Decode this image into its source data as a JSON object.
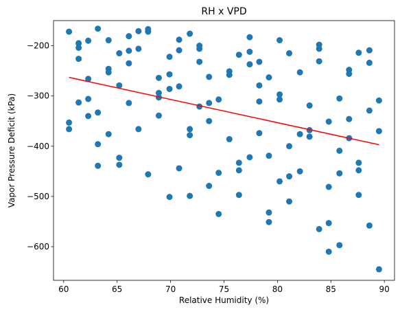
{
  "chart_data": {
    "type": "scatter",
    "title": "RH x VPD",
    "xlabel": "Relative Humidity (%)",
    "ylabel": "Vapor Pressure Deficit (kPa)",
    "xlim": [
      59.05,
      90.95
    ],
    "ylim": [
      -667,
      -150
    ],
    "xticks": [
      60,
      65,
      70,
      75,
      80,
      85,
      90
    ],
    "yticks": [
      -200,
      -300,
      -400,
      -500,
      -600
    ],
    "grid": false,
    "point_color": "#1f77b4",
    "trend_color": "#ff0000",
    "points": [
      [
        60.5,
        -172
      ],
      [
        60.5,
        -353
      ],
      [
        60.5,
        -366
      ],
      [
        61.4,
        -195
      ],
      [
        61.4,
        -204
      ],
      [
        61.4,
        -226
      ],
      [
        61.4,
        -313
      ],
      [
        62.3,
        -190
      ],
      [
        62.3,
        -266
      ],
      [
        62.3,
        -306
      ],
      [
        62.3,
        -340
      ],
      [
        63.2,
        -166
      ],
      [
        63.2,
        -333
      ],
      [
        63.2,
        -396
      ],
      [
        63.2,
        -439
      ],
      [
        64.2,
        -189
      ],
      [
        64.2,
        -246
      ],
      [
        64.2,
        -253
      ],
      [
        64.2,
        -376
      ],
      [
        65.2,
        -215
      ],
      [
        65.2,
        -279
      ],
      [
        65.2,
        -423
      ],
      [
        65.2,
        -437
      ],
      [
        66.1,
        -181
      ],
      [
        66.1,
        -210
      ],
      [
        66.1,
        -235
      ],
      [
        66.1,
        -314
      ],
      [
        67.0,
        -171
      ],
      [
        67.0,
        -206
      ],
      [
        67.0,
        -366
      ],
      [
        67.9,
        -167
      ],
      [
        67.9,
        -172
      ],
      [
        67.9,
        -456
      ],
      [
        68.9,
        -264
      ],
      [
        68.9,
        -294
      ],
      [
        68.9,
        -303
      ],
      [
        68.9,
        -339
      ],
      [
        69.9,
        -222
      ],
      [
        69.9,
        -257
      ],
      [
        69.9,
        -286
      ],
      [
        69.9,
        -501
      ],
      [
        70.8,
        -188
      ],
      [
        70.8,
        -209
      ],
      [
        70.8,
        -281
      ],
      [
        70.8,
        -444
      ],
      [
        71.8,
        -176
      ],
      [
        71.8,
        -366
      ],
      [
        71.8,
        -378
      ],
      [
        71.8,
        -499
      ],
      [
        72.7,
        -200
      ],
      [
        72.7,
        -206
      ],
      [
        72.7,
        -232
      ],
      [
        72.7,
        -321
      ],
      [
        73.6,
        -262
      ],
      [
        73.6,
        -314
      ],
      [
        73.6,
        -350
      ],
      [
        73.6,
        -479
      ],
      [
        74.5,
        -307
      ],
      [
        74.5,
        -453
      ],
      [
        74.5,
        -535
      ],
      [
        75.5,
        -251
      ],
      [
        75.5,
        -258
      ],
      [
        75.5,
        -386
      ],
      [
        76.4,
        -218
      ],
      [
        76.4,
        -433
      ],
      [
        76.4,
        -448
      ],
      [
        76.4,
        -497
      ],
      [
        77.4,
        -183
      ],
      [
        77.4,
        -212
      ],
      [
        77.4,
        -237
      ],
      [
        77.4,
        -422
      ],
      [
        78.3,
        -232
      ],
      [
        78.3,
        -279
      ],
      [
        78.3,
        -311
      ],
      [
        78.3,
        -374
      ],
      [
        79.2,
        -263
      ],
      [
        79.2,
        -419
      ],
      [
        79.2,
        -532
      ],
      [
        79.2,
        -551
      ],
      [
        80.2,
        -189
      ],
      [
        80.2,
        -297
      ],
      [
        80.2,
        -307
      ],
      [
        80.2,
        -470
      ],
      [
        81.1,
        -215
      ],
      [
        81.1,
        -400
      ],
      [
        81.1,
        -460
      ],
      [
        81.1,
        -510
      ],
      [
        82.1,
        -253
      ],
      [
        82.1,
        -376
      ],
      [
        82.1,
        -450
      ],
      [
        83.0,
        -319
      ],
      [
        83.0,
        -368
      ],
      [
        83.0,
        -381
      ],
      [
        83.9,
        -198
      ],
      [
        83.9,
        -206
      ],
      [
        83.9,
        -231
      ],
      [
        83.9,
        -565
      ],
      [
        84.8,
        -351
      ],
      [
        84.8,
        -481
      ],
      [
        84.8,
        -553
      ],
      [
        84.8,
        -610
      ],
      [
        85.8,
        -305
      ],
      [
        85.8,
        -409
      ],
      [
        85.8,
        -454
      ],
      [
        85.8,
        -597
      ],
      [
        86.7,
        -248
      ],
      [
        86.7,
        -256
      ],
      [
        86.7,
        -346
      ],
      [
        86.7,
        -384
      ],
      [
        87.6,
        -214
      ],
      [
        87.6,
        -433
      ],
      [
        87.6,
        -448
      ],
      [
        87.6,
        -497
      ],
      [
        88.6,
        -209
      ],
      [
        88.6,
        -234
      ],
      [
        88.6,
        -329
      ],
      [
        88.6,
        -558
      ],
      [
        89.5,
        -309
      ],
      [
        89.5,
        -370
      ],
      [
        89.5,
        -645
      ]
    ],
    "trendline": {
      "x": [
        60.5,
        89.5
      ],
      "y": [
        -263,
        -397
      ]
    }
  }
}
